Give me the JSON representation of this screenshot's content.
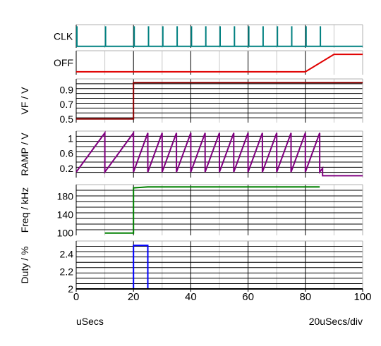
{
  "chart_data": {
    "type": "line",
    "x_unit_label": "uSecs",
    "time_per_div_label": "20uSecs/div",
    "x_axis": {
      "min": 0,
      "max": 100,
      "ticks": [
        0,
        20,
        40,
        60,
        80,
        100
      ]
    },
    "panels": [
      {
        "id": "clk",
        "label": "CLK",
        "label_style": "horizontal",
        "color": "#008080",
        "grid": true,
        "ylim": [
          0,
          1
        ],
        "ticks": [],
        "kind": "pulses",
        "series": {
          "baseline": 0.07,
          "pulse_height": 0.93,
          "pulse_times": [
            0,
            10,
            20,
            25,
            30,
            35,
            40,
            45,
            50,
            55,
            60,
            65,
            70,
            75,
            80,
            85
          ]
        }
      },
      {
        "id": "off",
        "label": "OFF",
        "label_style": "horizontal",
        "color": "#e00000",
        "grid": true,
        "ylim": [
          0,
          1
        ],
        "ticks": [],
        "kind": "line",
        "series": {
          "x": [
            0,
            80,
            90,
            100
          ],
          "y": [
            0.12,
            0.12,
            0.85,
            0.85
          ]
        }
      },
      {
        "id": "vf",
        "label": "VF / V",
        "label_style": "vertical",
        "color": "#8b0000",
        "grid": true,
        "ylim": [
          0.45,
          1.05
        ],
        "ticks": [
          0.5,
          0.7,
          0.9
        ],
        "kind": "line",
        "series": {
          "x": [
            0,
            20,
            20,
            100
          ],
          "y": [
            0.5,
            0.5,
            1.0,
            1.0
          ]
        }
      },
      {
        "id": "ramp",
        "label": "RAMP / V",
        "label_style": "vertical",
        "color": "#800080",
        "grid": true,
        "ylim": [
          -0.05,
          1.2
        ],
        "ticks": [
          0.2,
          0.6,
          1
        ],
        "kind": "line",
        "series": {
          "x": [
            0,
            10,
            10,
            20,
            20,
            25,
            25,
            30,
            30,
            35,
            35,
            40,
            40,
            45,
            45,
            50,
            50,
            55,
            55,
            60,
            60,
            65,
            65,
            70,
            70,
            75,
            75,
            80,
            80,
            85,
            85,
            86,
            86,
            100
          ],
          "y": [
            0.1,
            1.15,
            0.1,
            1.15,
            0.1,
            1.15,
            0.1,
            1.15,
            0.1,
            1.15,
            0.1,
            1.15,
            0.1,
            1.15,
            0.1,
            1.15,
            0.1,
            1.15,
            0.1,
            1.15,
            0.1,
            1.15,
            0.1,
            1.15,
            0.1,
            1.15,
            0.1,
            1.15,
            0.1,
            1.15,
            0.1,
            0.2,
            0.0,
            0.0
          ]
        }
      },
      {
        "id": "freq",
        "label": "Freq / kHz",
        "label_style": "vertical",
        "color": "#008000",
        "grid": true,
        "ylim": [
          95,
          205
        ],
        "ticks": [
          100,
          140,
          180
        ],
        "kind": "line",
        "series": {
          "x": [
            10,
            20,
            20,
            25,
            85
          ],
          "y": [
            100,
            100,
            198,
            200,
            200
          ]
        }
      },
      {
        "id": "duty",
        "label": "Duty / %",
        "label_style": "vertical",
        "color": "#0000ff",
        "grid": true,
        "ylim": [
          2,
          2.55
        ],
        "ticks": [
          2,
          2.2,
          2.4
        ],
        "kind": "line",
        "series": {
          "x": [
            10,
            20,
            20,
            25,
            25,
            85
          ],
          "y": [
            2,
            2,
            2.5,
            2.5,
            2,
            2
          ]
        }
      }
    ]
  }
}
